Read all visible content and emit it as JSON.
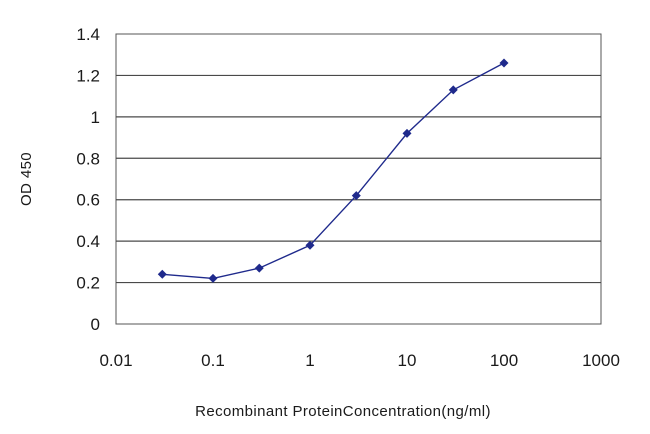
{
  "chart_data": {
    "type": "line",
    "x_scale": "log",
    "xlabel": "Recombinant ProteinConcentration(ng/ml)",
    "ylabel": "OD 450",
    "xlim": [
      0.01,
      1000
    ],
    "ylim": [
      0,
      1.4
    ],
    "x_ticks": [
      "0.01",
      "0.1",
      "1",
      "10",
      "100",
      "1000"
    ],
    "y_ticks": [
      "0",
      "0.2",
      "0.4",
      "0.6",
      "0.8",
      "1",
      "1.2",
      "1.4"
    ],
    "grid": "horizontal",
    "legend": "none",
    "series": [
      {
        "color": "#1f2a8c",
        "x": [
          0.03,
          0.1,
          0.3,
          1,
          3,
          10,
          30,
          100
        ],
        "y": [
          0.24,
          0.22,
          0.27,
          0.38,
          0.62,
          0.92,
          1.13,
          1.26
        ]
      }
    ]
  }
}
